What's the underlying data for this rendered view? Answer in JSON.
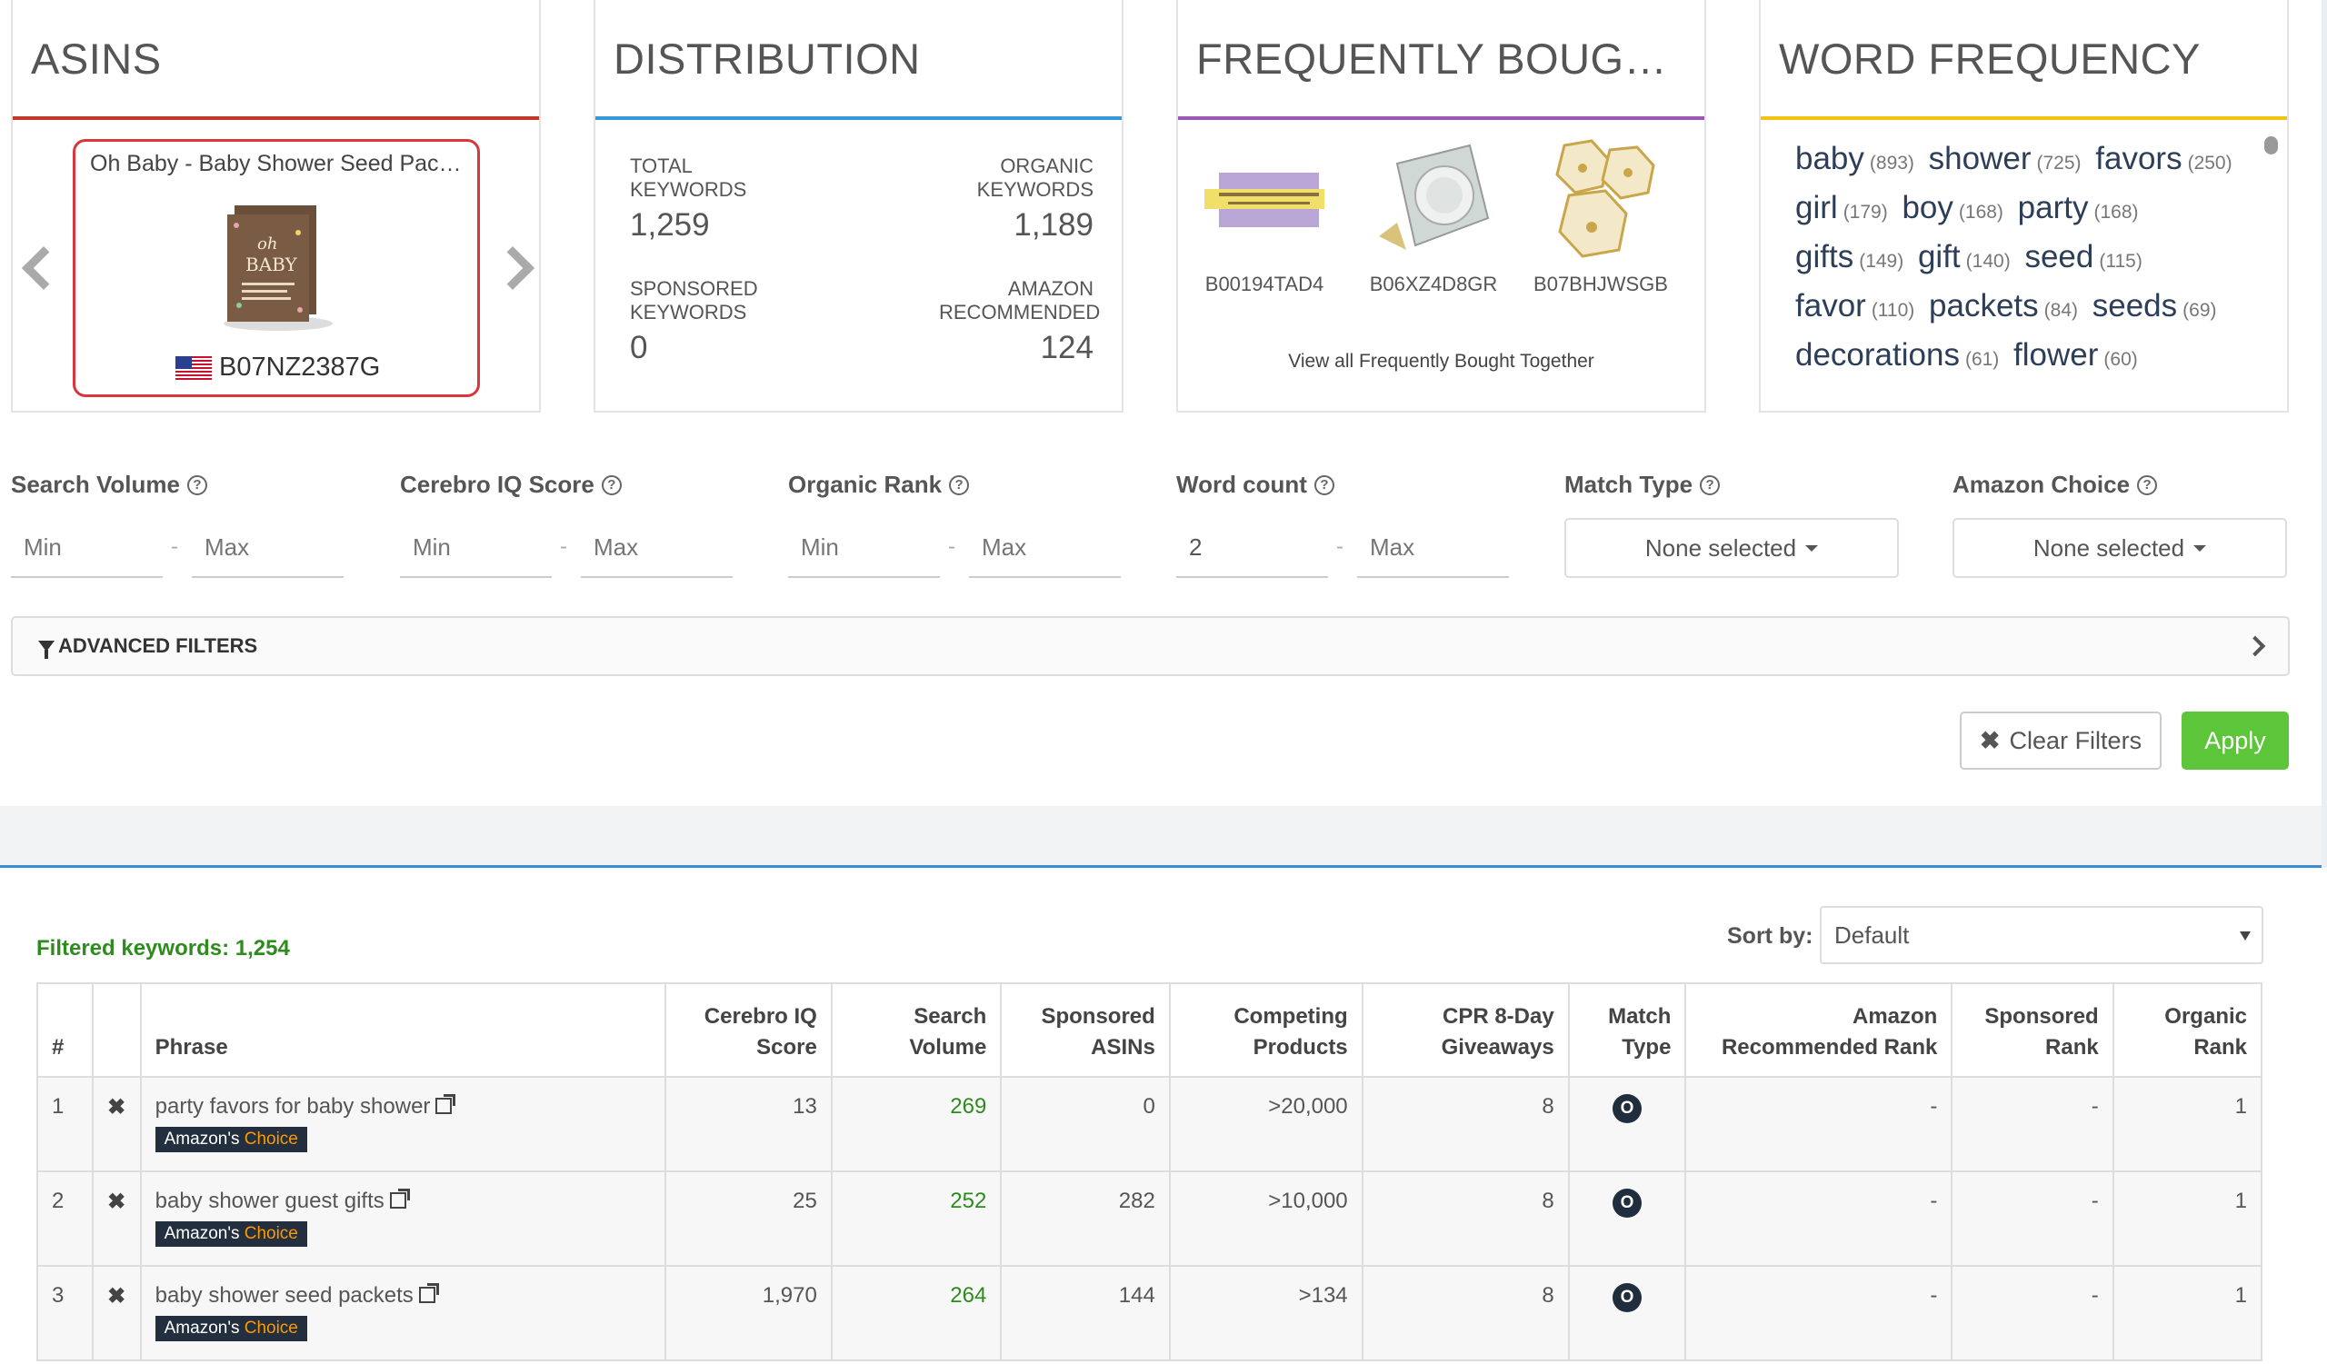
{
  "cards": {
    "asins": {
      "title": "ASINS",
      "product_name": "Oh Baby - Baby Shower Seed Pack...",
      "asin": "B07NZ2387G"
    },
    "distribution": {
      "title": "DISTRIBUTION",
      "total_keywords_label": "TOTAL KEYWORDS",
      "total_keywords": "1,259",
      "organic_keywords_label": "ORGANIC KEYWORDS",
      "organic_keywords": "1,189",
      "sponsored_keywords_label": "SPONSORED KEYWORDS",
      "sponsored_keywords": "0",
      "amazon_recommended_label": "AMAZON RECOMMENDED",
      "amazon_recommended": "124"
    },
    "frequently_bought": {
      "title": "FREQUENTLY BOUGHT TOGETHER",
      "items": [
        "B00194TAD4",
        "B06XZ4D8GR",
        "B07BHJWSGB"
      ],
      "link": "View all Frequently Bought Together"
    },
    "word_frequency": {
      "title": "WORD FREQUENCY",
      "words": [
        {
          "word": "baby",
          "count": "(893)"
        },
        {
          "word": "shower",
          "count": "(725)"
        },
        {
          "word": "favors",
          "count": "(250)"
        },
        {
          "word": "girl",
          "count": "(179)"
        },
        {
          "word": "boy",
          "count": "(168)"
        },
        {
          "word": "party",
          "count": "(168)"
        },
        {
          "word": "gifts",
          "count": "(149)"
        },
        {
          "word": "gift",
          "count": "(140)"
        },
        {
          "word": "seed",
          "count": "(115)"
        },
        {
          "word": "favor",
          "count": "(110)"
        },
        {
          "word": "packets",
          "count": "(84)"
        },
        {
          "word": "seeds",
          "count": "(69)"
        },
        {
          "word": "decorations",
          "count": "(61)"
        },
        {
          "word": "flower",
          "count": "(60)"
        }
      ]
    }
  },
  "filters": {
    "search_volume": {
      "label": "Search Volume",
      "min": "",
      "max": "",
      "min_placeholder": "Min",
      "max_placeholder": "Max"
    },
    "cerebro_iq": {
      "label": "Cerebro IQ Score",
      "min": "",
      "max": "",
      "min_placeholder": "Min",
      "max_placeholder": "Max"
    },
    "organic_rank": {
      "label": "Organic Rank",
      "min": "",
      "max": "",
      "min_placeholder": "Min",
      "max_placeholder": "Max"
    },
    "word_count": {
      "label": "Word count",
      "min": "2",
      "max": "",
      "min_placeholder": "Min",
      "max_placeholder": "Max"
    },
    "match_type": {
      "label": "Match Type",
      "value": "None selected"
    },
    "amazon_choice": {
      "label": "Amazon Choice",
      "value": "None selected"
    },
    "advanced_label": "ADVANCED FILTERS",
    "clear_label": "Clear Filters",
    "apply_label": "Apply"
  },
  "results": {
    "filtered_label": "Filtered keywords: 1,254",
    "sort_label": "Sort by:",
    "sort_value": "Default",
    "columns": [
      "#",
      "",
      "Phrase",
      "Cerebro IQ Score",
      "Search Volume",
      "Sponsored ASINs",
      "Competing Products",
      "CPR 8-Day Giveaways",
      "Match Type",
      "Amazon Recommended Rank",
      "Sponsored Rank",
      "Organic Rank"
    ],
    "badge_prefix": "Amazon's",
    "badge_suffix": "Choice",
    "rows": [
      {
        "num": "1",
        "phrase": "party favors for baby shower",
        "iq": "13",
        "sv": "269",
        "sponsored_asins": "0",
        "competing": ">20,000",
        "cpr": "8",
        "match": "O",
        "amazon_rec_rank": "-",
        "sponsored_rank": "-",
        "organic_rank": "1"
      },
      {
        "num": "2",
        "phrase": "baby shower guest gifts",
        "iq": "25",
        "sv": "252",
        "sponsored_asins": "282",
        "competing": ">10,000",
        "cpr": "8",
        "match": "O",
        "amazon_rec_rank": "-",
        "sponsored_rank": "-",
        "organic_rank": "1"
      },
      {
        "num": "3",
        "phrase": "baby shower seed packets",
        "iq": "1,970",
        "sv": "264",
        "sponsored_asins": "144",
        "competing": ">134",
        "cpr": "8",
        "match": "O",
        "amazon_rec_rank": "-",
        "sponsored_rank": "-",
        "organic_rank": "1"
      }
    ]
  },
  "colors": {
    "asins_accent": "#c0392b",
    "distribution_accent": "#3498db",
    "frequently_accent": "#9b59b6",
    "word_accent": "#f1c40f",
    "apply_green": "#5cc53a",
    "search_volume_green": "#2e8b1e"
  },
  "icons": [
    "chevron-left-icon",
    "chevron-right-icon",
    "us-flag-icon",
    "question-icon",
    "caret-down-icon",
    "funnel-icon",
    "chevron-right-icon",
    "close-icon",
    "external-link-icon",
    "remove-icon"
  ]
}
